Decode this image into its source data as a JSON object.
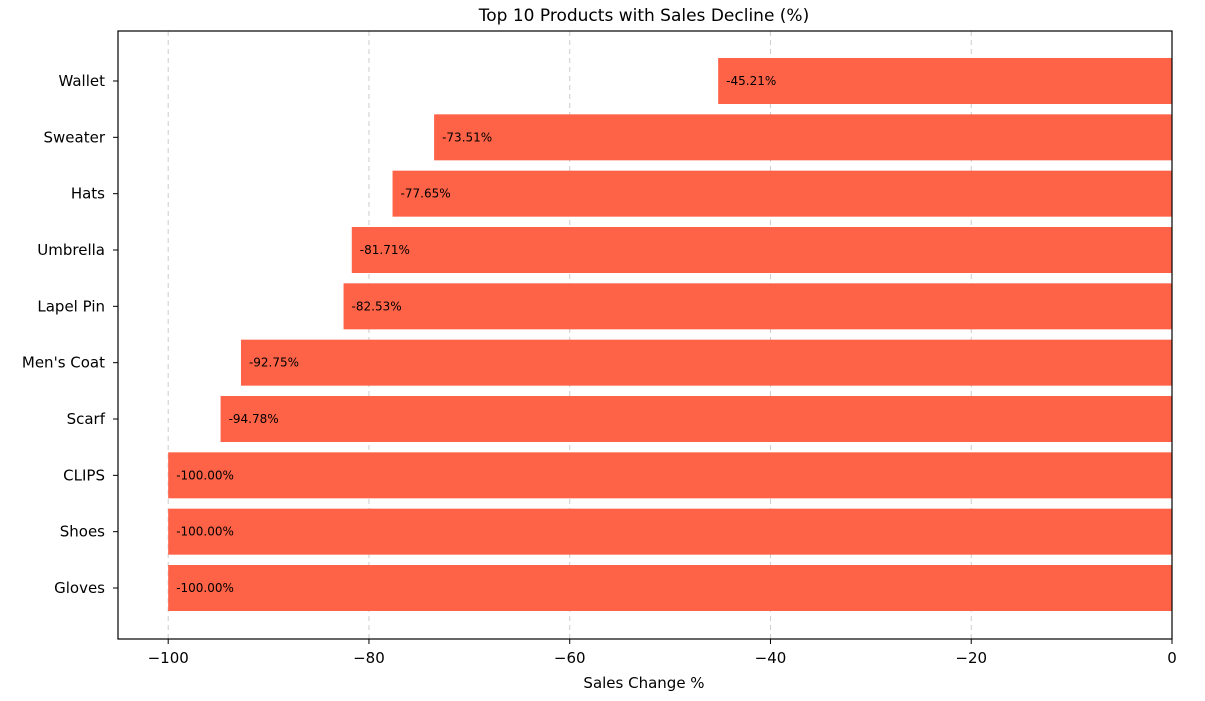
{
  "chart_data": {
    "type": "bar",
    "orientation": "horizontal",
    "title": "Top 10 Products with Sales Decline (%)",
    "xlabel": "Sales Change %",
    "ylabel": "",
    "categories": [
      "Wallet",
      "Sweater",
      "Hats",
      "Umbrella",
      "Lapel Pin",
      "Men's Coat",
      "Scarf",
      "CLIPS",
      "Shoes",
      "Gloves"
    ],
    "values": [
      -45.21,
      -73.51,
      -77.65,
      -81.71,
      -82.53,
      -92.75,
      -94.78,
      -100.0,
      -100.0,
      -100.0
    ],
    "data_labels": [
      "-45.21%",
      "-73.51%",
      "-77.65%",
      "-81.71%",
      "-82.53%",
      "-92.75%",
      "-94.78%",
      "-100.00%",
      "-100.00%",
      "-100.00%"
    ],
    "xlim": [
      -105,
      0
    ],
    "xticks": [
      -100,
      -80,
      -60,
      -40,
      -20,
      0
    ],
    "xtick_labels": [
      "−100",
      "−80",
      "−60",
      "−40",
      "−20",
      "0"
    ],
    "grid": "x-dashed",
    "bar_color": "#ff6347"
  }
}
